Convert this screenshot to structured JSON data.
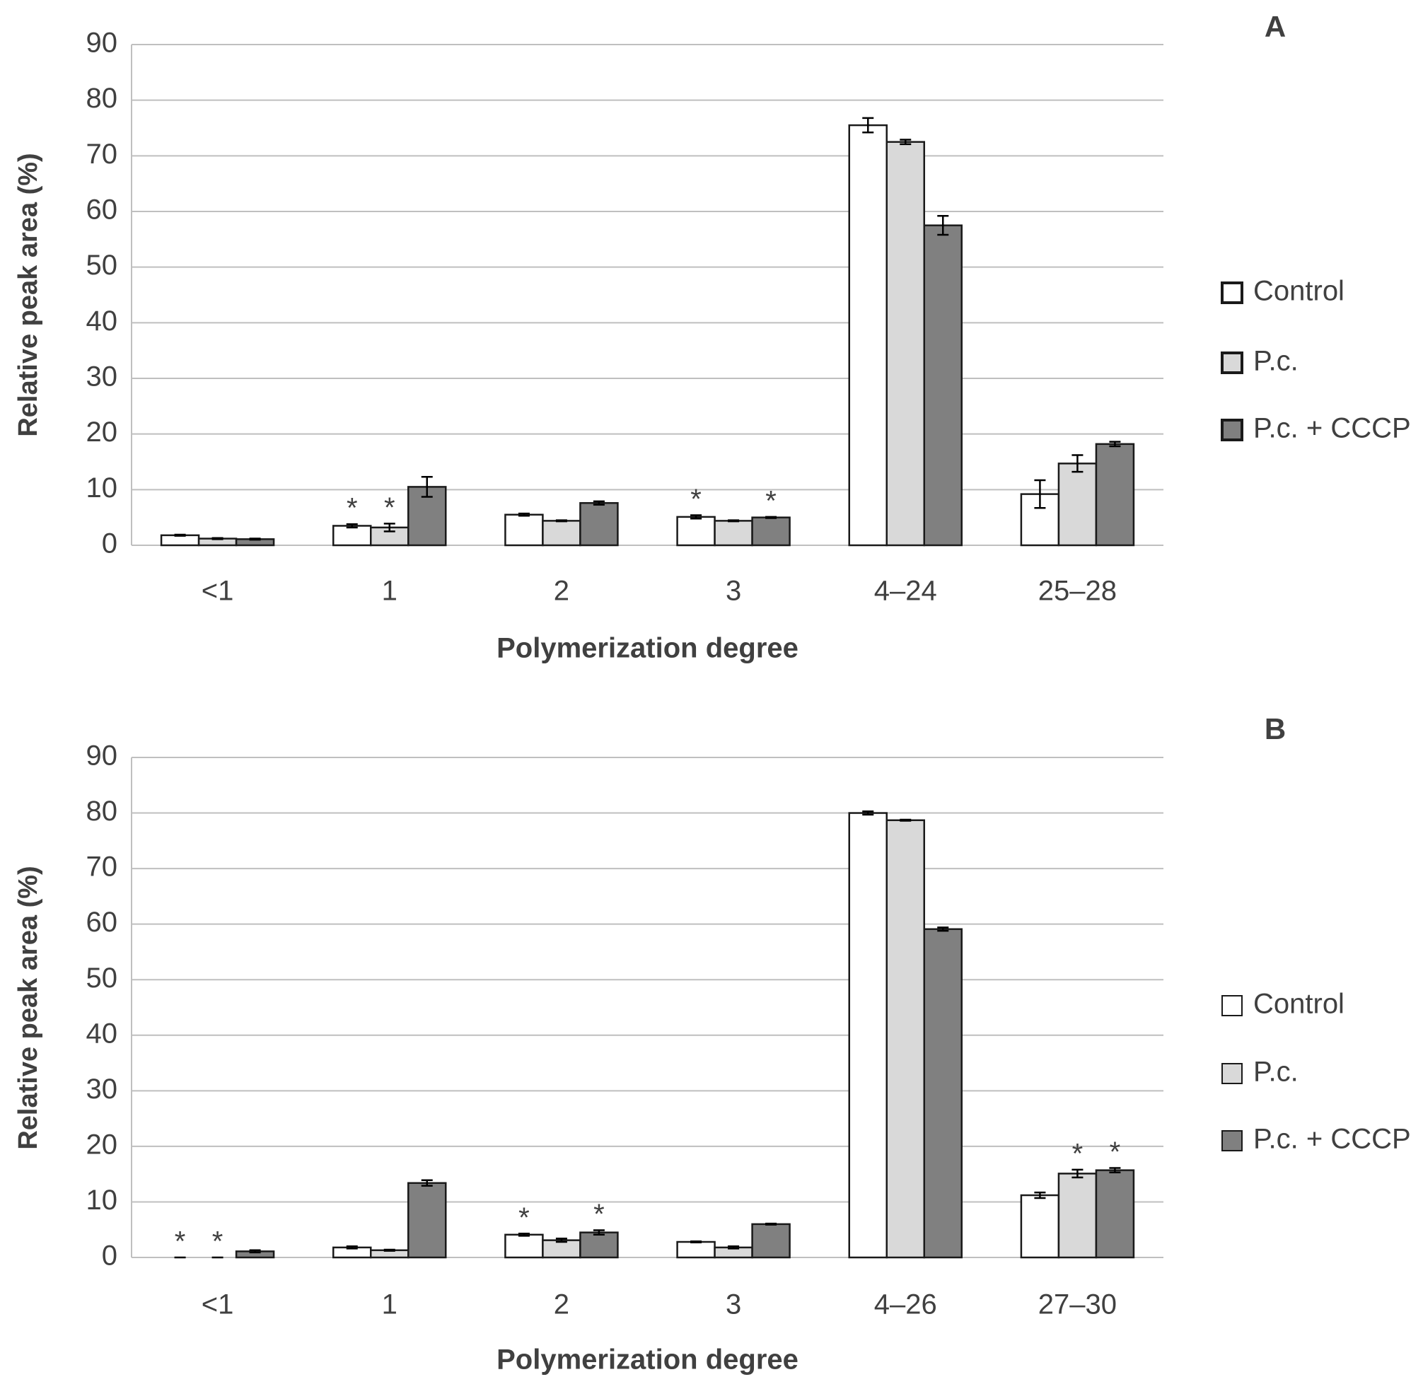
{
  "chart_data": [
    {
      "type": "bar",
      "title": "A",
      "xlabel": "Polymerization degree",
      "ylabel": "Relative peak area (%)",
      "categories": [
        "<1",
        "1",
        "2",
        "3",
        "4–24",
        "25–28"
      ],
      "ylim": [
        0,
        90
      ],
      "yticks": [
        0,
        10,
        20,
        30,
        40,
        50,
        60,
        70,
        80,
        90
      ],
      "grid": true,
      "series": [
        {
          "name": "Control",
          "color": "#ffffff",
          "values": [
            1.8,
            3.5,
            5.5,
            5.1,
            75.5,
            9.2
          ],
          "errors": [
            0.1,
            0.3,
            0.2,
            0.3,
            1.3,
            2.5
          ],
          "flags": [
            null,
            "*",
            null,
            "*",
            null,
            null
          ]
        },
        {
          "name": "P.c.",
          "color": "#d9d9d9",
          "values": [
            1.2,
            3.2,
            4.4,
            4.4,
            72.5,
            14.7
          ],
          "errors": [
            0.1,
            0.7,
            0.1,
            0.1,
            0.4,
            1.5
          ],
          "flags": [
            null,
            "*",
            null,
            null,
            null,
            null
          ]
        },
        {
          "name": "P.c. + CCCP",
          "color": "#808080",
          "values": [
            1.1,
            10.5,
            7.6,
            5.0,
            57.5,
            18.2
          ],
          "errors": [
            0.1,
            1.8,
            0.3,
            0.1,
            1.7,
            0.4
          ],
          "flags": [
            null,
            null,
            null,
            "*",
            null,
            null
          ]
        }
      ]
    },
    {
      "type": "bar",
      "title": "B",
      "xlabel": "Polymerization degree",
      "ylabel": "Relative peak area (%)",
      "categories": [
        "<1",
        "1",
        "2",
        "3",
        "4–26",
        "27–30"
      ],
      "ylim": [
        0,
        90
      ],
      "yticks": [
        0,
        10,
        20,
        30,
        40,
        50,
        60,
        70,
        80,
        90
      ],
      "grid": true,
      "series": [
        {
          "name": "Control",
          "color": "#ffffff",
          "values": [
            0,
            1.8,
            4.1,
            2.8,
            80.0,
            11.2
          ],
          "errors": [
            0,
            0.2,
            0.2,
            0.1,
            0.3,
            0.5
          ],
          "flags": [
            "*",
            null,
            "*",
            null,
            null,
            null
          ]
        },
        {
          "name": "P.c.",
          "color": "#d9d9d9",
          "values": [
            0,
            1.3,
            3.1,
            1.8,
            78.7,
            15.1
          ],
          "errors": [
            0,
            0.1,
            0.3,
            0.2,
            0.1,
            0.7
          ],
          "flags": [
            "*",
            null,
            null,
            null,
            null,
            "*"
          ]
        },
        {
          "name": "P.c. + CCCP",
          "color": "#808080",
          "values": [
            1.1,
            13.4,
            4.5,
            6.0,
            59.1,
            15.7
          ],
          "errors": [
            0.2,
            0.5,
            0.4,
            0.1,
            0.3,
            0.4
          ],
          "flags": [
            null,
            null,
            "*",
            null,
            null,
            "*"
          ]
        }
      ]
    }
  ]
}
